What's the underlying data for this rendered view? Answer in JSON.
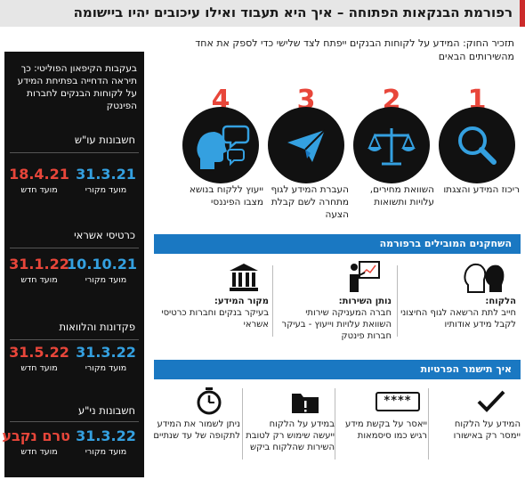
{
  "header": {
    "title": "רפורמת הבנקאות הפתוחה – איך היא תעבוד ואילו עיכובים יהיו ביישומה"
  },
  "intro": "תזכיר החוק: המידע על לקוחות הבנקים ייפתח לצד שלישי כדי לספק את אחד מהשירותים הבאים",
  "steps": [
    {
      "number": "1",
      "icon": "magnifier-icon",
      "label": "ריכוז המידע והצגתו"
    },
    {
      "number": "2",
      "icon": "scales-icon",
      "label": "השוואת מחירים, עלויות ותשואות"
    },
    {
      "number": "3",
      "icon": "paper-plane-icon",
      "label": "העברת המידע לגוף מתחרה לשם קבלת הצעה"
    },
    {
      "number": "4",
      "icon": "advisor-icon",
      "label": "ייעוץ ללקוח בנושא מצבו הפיננסי"
    }
  ],
  "players": {
    "heading": "השחקנים המובילים ברפורמה",
    "items": [
      {
        "icon": "customer-icon",
        "title": "הלקוח:",
        "text": "חייב לתת הרשאה לגוף החיצוני לקבל מידע אודותיו"
      },
      {
        "icon": "presenter-icon",
        "title": "נותן השירות:",
        "text": "חברה המעניקה שירותי השוואת עלויות וייעוץ - בעיקר חברות פינטק"
      },
      {
        "icon": "bank-icon",
        "title": "מקור המידע:",
        "text": "בעיקר בנקים וחברות כרטיסי אשראי"
      }
    ]
  },
  "flow": {
    "heading": "איך תישמר הפרטיות",
    "items": [
      {
        "icon": "check-icon",
        "text": "המידע על הלקוח יימסר רק באישורו"
      },
      {
        "icon": "password-icon",
        "password_mask": "****",
        "text": "ייאסר על בקשת מידע רגיש כמו סיסמאות"
      },
      {
        "icon": "folder-alert-icon",
        "text": "במידע על הלקוח ייעשה שימוש רק לטובת השירות שהלקוח ביקש"
      },
      {
        "icon": "stopwatch-icon",
        "text": "ניתן לשמור את המידע לתקופה של עד שנתיים"
      }
    ]
  },
  "panel": {
    "intro": "בעקבות הקיפאון הפוליטי: כך תיראה הדחייה בפתיחת המידע על לקוחות הבנקים לחברות הפינטק",
    "accounts": [
      {
        "title": "חשבונות עו\"ש",
        "original": "31.3.21",
        "new": "18.4.21"
      },
      {
        "title": "כרטיסי אשראי",
        "original": "10.10.21",
        "new": "31.1.22"
      },
      {
        "title": "פקדונות והלוואות",
        "original": "31.3.22",
        "new": "31.5.22"
      },
      {
        "title": "חשבונות ני\"ע",
        "original": "31.3.22",
        "new": "טרם נקבע"
      }
    ],
    "original_caption": "מועד מקורי",
    "new_caption": "מועד חדש"
  },
  "colors": {
    "accent_red": "#e8463a",
    "accent_blue": "#1a78c2",
    "date_blue": "#34a0e0",
    "panel_bg": "#111111"
  }
}
